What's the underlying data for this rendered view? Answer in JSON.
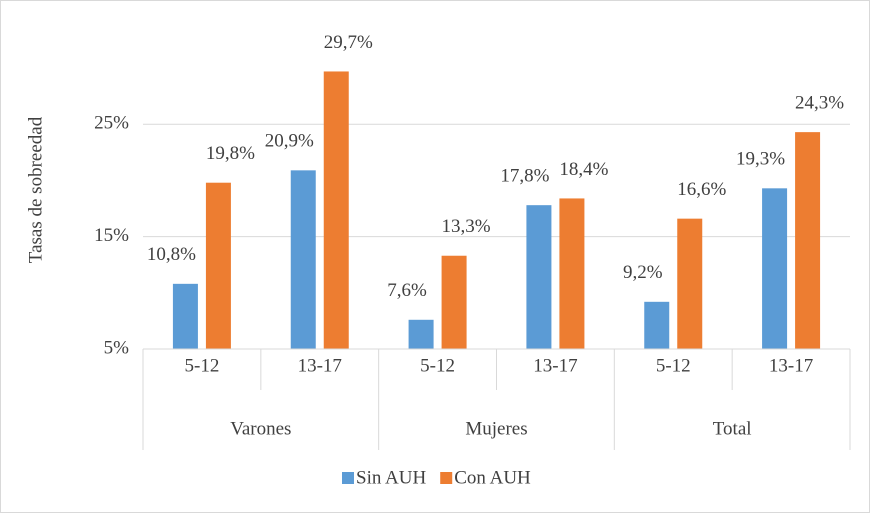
{
  "chart_data": {
    "type": "bar",
    "y_axis_label": "Tasas de sobreedad",
    "groups": [
      "Varones",
      "Mujeres",
      "Total"
    ],
    "categories": [
      "5-12",
      "13-17",
      "5-12",
      "13-17",
      "5-12",
      "13-17"
    ],
    "series": [
      {
        "name": "Sin AUH",
        "color": "#5b9bd5",
        "values": [
          10.8,
          20.9,
          7.6,
          17.8,
          9.2,
          19.3
        ],
        "value_labels": [
          "10,8%",
          "20,9%",
          "7,6%",
          "17,8%",
          "9,2%",
          "19,3%"
        ]
      },
      {
        "name": "Con AUH",
        "color": "#ed7d31",
        "values": [
          19.8,
          29.7,
          13.3,
          18.4,
          16.6,
          24.3
        ],
        "value_labels": [
          "19,8%",
          "29,7%",
          "13,3%",
          "18,4%",
          "16,6%",
          "24,3%"
        ]
      }
    ],
    "ylim": [
      5,
      32.5
    ],
    "yticks": [
      {
        "value": 5,
        "label": "5%"
      },
      {
        "value": 15,
        "label": "15%"
      },
      {
        "value": 25,
        "label": "25%"
      }
    ],
    "grid": true,
    "legend": "bottom"
  }
}
